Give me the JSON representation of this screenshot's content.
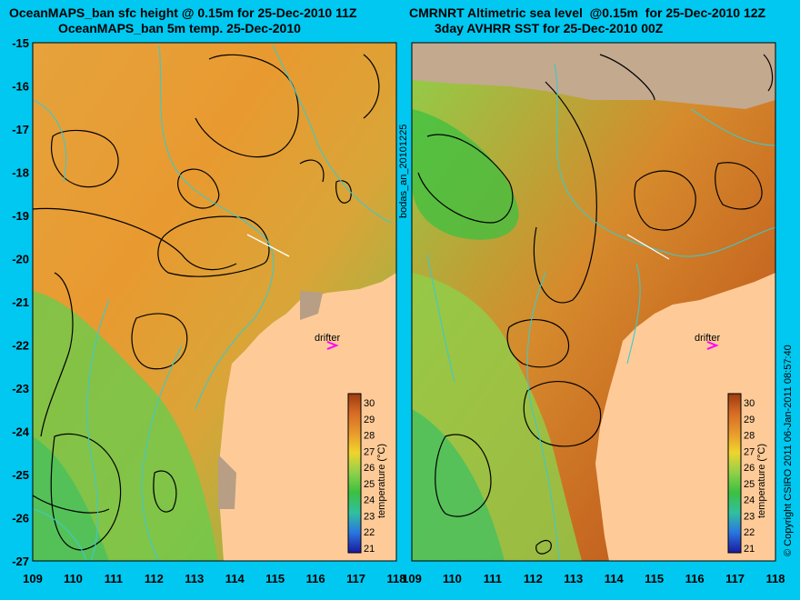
{
  "left_panel": {
    "title_line1": "OceanMAPS_ban sfc height @ 0.15m for 25-Dec-2010 11Z",
    "title_line2": "OceanMAPS_ban 5m temp. 25-Dec-2010",
    "drifter_label": "drifter",
    "colorbar": {
      "label": "temperature (°C)",
      "ticks": [
        "30",
        "29",
        "28",
        "27",
        "26",
        "25",
        "24",
        "23",
        "22",
        "21"
      ]
    }
  },
  "right_panel": {
    "title_line1": "CMRNRT Altimetric sea level  @0.15m  for 25-Dec-2010 12Z",
    "title_line2": "3day AVHRR SST for 25-Dec-2010 00Z",
    "drifter_label": "drifter",
    "colorbar": {
      "label": "temperature (°C)",
      "ticks": [
        "30",
        "29",
        "28",
        "27",
        "26",
        "25",
        "24",
        "23",
        "22",
        "21"
      ]
    }
  },
  "axes": {
    "lat_labels": [
      "-15",
      "-16",
      "-17",
      "-18",
      "-19",
      "-20",
      "-21",
      "-22",
      "-23",
      "-24",
      "-25",
      "-26",
      "-27"
    ],
    "lon_labels": [
      "109",
      "110",
      "111",
      "112",
      "113",
      "114",
      "115",
      "116",
      "117",
      "118"
    ]
  },
  "side_labels": {
    "analysis_id": "bodas_an_20101225",
    "copyright": "© Copyright CSIRO 2011  06-Jan-2011 08:57:40"
  },
  "colors": {
    "background": "#00c8f0",
    "land": "#fecb98",
    "contour": "#000000",
    "isobath": "#40c8c8",
    "drifter_marker": "#ff00ff"
  },
  "icons": {
    "drifter_marker": "magenta-arrow-icon"
  }
}
